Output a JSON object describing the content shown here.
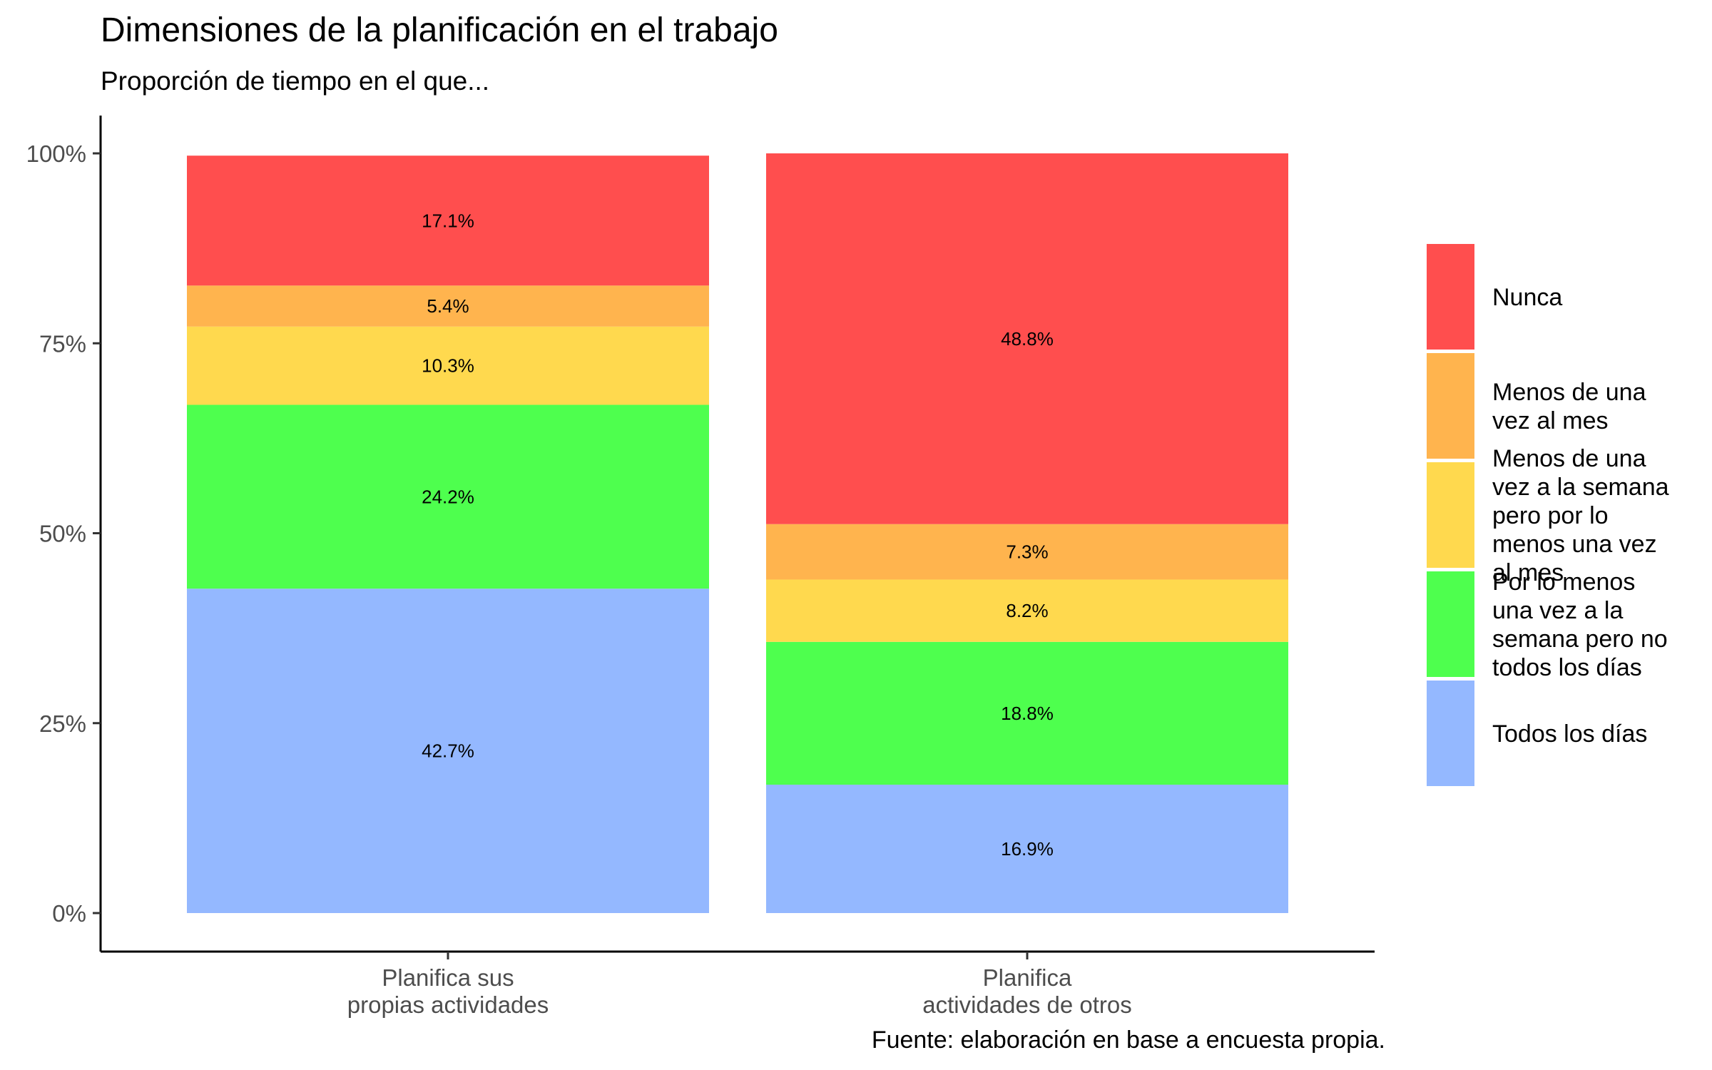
{
  "chart_data": {
    "type": "bar",
    "stacked": true,
    "title": "Dimensiones de la planificación en el trabajo",
    "subtitle": "Proporción de tiempo en el que...",
    "caption": "Fuente: elaboración en base a encuesta propia.",
    "xlabel": "",
    "ylabel": "",
    "ylim": [
      0,
      1
    ],
    "yticks": [
      {
        "value": 0,
        "label": "0%"
      },
      {
        "value": 0.25,
        "label": "25%"
      },
      {
        "value": 0.5,
        "label": "50%"
      },
      {
        "value": 0.75,
        "label": "75%"
      },
      {
        "value": 1,
        "label": "100%"
      }
    ],
    "grid": false,
    "legend_position": "right",
    "categories": [
      [
        "Planifica sus",
        "propias actividades"
      ],
      [
        "Planifica",
        "actividades de otros"
      ]
    ],
    "series": [
      {
        "name": "Todos los días",
        "color": "#94B8FF",
        "values": [
          0.427,
          0.169
        ],
        "labels": [
          "42.7%",
          "16.9%"
        ],
        "legend_lines": [
          "Todos los días"
        ]
      },
      {
        "name": "Por lo menos una vez a la semana pero no todos los días",
        "color": "#4EFF4E",
        "values": [
          0.242,
          0.188
        ],
        "labels": [
          "24.2%",
          "18.8%"
        ],
        "legend_lines": [
          "Por lo menos",
          "una vez a la",
          "semana pero no",
          "todos los días"
        ]
      },
      {
        "name": "Menos de una vez a la semana pero por lo menos una vez al mes",
        "color": "#FFD94E",
        "values": [
          0.103,
          0.082
        ],
        "labels": [
          "10.3%",
          "8.2%"
        ],
        "legend_lines": [
          "Menos de una",
          "vez a la semana",
          "pero por lo",
          "menos una vez",
          "al mes"
        ]
      },
      {
        "name": "Menos de una vez al mes",
        "color": "#FFB44E",
        "values": [
          0.054,
          0.073
        ],
        "labels": [
          "5.4%",
          "7.3%"
        ],
        "legend_lines": [
          "Menos de una",
          "vez al mes"
        ]
      },
      {
        "name": "Nunca",
        "color": "#FF4E4E",
        "values": [
          0.171,
          0.488
        ],
        "labels": [
          "17.1%",
          "48.8%"
        ],
        "legend_lines": [
          "Nunca"
        ]
      }
    ]
  }
}
